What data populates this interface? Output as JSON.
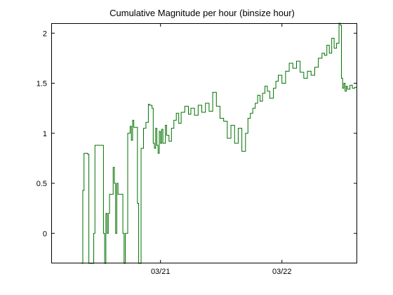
{
  "chart_data": {
    "type": "line",
    "title": "Cumulative Magnitude per hour (binsize  hour)",
    "xlabel": "",
    "ylabel": "",
    "line_style": "step",
    "series_color": "#007000",
    "axis_color": "#000000",
    "background": "#ffffff",
    "grid": false,
    "legend": "none",
    "x_unit": "days since 03/20 00:00",
    "xlim": [
      -0.15,
      2.37
    ],
    "ylim": [
      -0.3,
      2.1
    ],
    "xticks": [
      {
        "value": 0.75,
        "label": "03/21"
      },
      {
        "value": 1.75,
        "label": "03/22"
      }
    ],
    "yticks": [
      {
        "value": 0,
        "label": "0"
      },
      {
        "value": 0.5,
        "label": "0.5"
      },
      {
        "value": 1,
        "label": "1"
      },
      {
        "value": 1.5,
        "label": "1.5"
      },
      {
        "value": 2,
        "label": "2"
      }
    ],
    "series": [
      {
        "x": [
          0.1,
          0.11,
          0.12,
          0.15,
          0.16,
          0.2,
          0.21,
          0.27,
          0.28,
          0.29,
          0.3,
          0.31,
          0.32,
          0.33,
          0.36,
          0.37,
          0.38,
          0.39,
          0.4,
          0.44,
          0.45,
          0.46,
          0.48,
          0.5,
          0.51,
          0.52,
          0.53,
          0.56,
          0.57,
          0.59,
          0.61,
          0.63,
          0.65,
          0.66,
          0.68,
          0.69,
          0.7,
          0.71,
          0.72,
          0.73,
          0.74,
          0.75,
          0.76,
          0.77,
          0.79,
          0.8,
          0.82,
          0.84,
          0.86,
          0.88,
          0.9,
          0.92,
          0.95,
          0.98,
          1.0,
          1.03,
          1.06,
          1.09,
          1.12,
          1.15,
          1.18,
          1.21,
          1.24,
          1.27,
          1.3,
          1.33,
          1.36,
          1.39,
          1.42,
          1.45,
          1.47,
          1.49,
          1.51,
          1.53,
          1.55,
          1.57,
          1.59,
          1.61,
          1.63,
          1.65,
          1.68,
          1.7,
          1.72,
          1.75,
          1.78,
          1.81,
          1.84,
          1.87,
          1.9,
          1.93,
          1.96,
          1.99,
          2.02,
          2.05,
          2.08,
          2.1,
          2.12,
          2.14,
          2.16,
          2.18,
          2.2,
          2.22,
          2.23,
          2.24,
          2.25,
          2.26,
          2.27,
          2.28,
          2.29,
          2.31,
          2.33,
          2.35
        ],
        "y": [
          -0.3,
          0.43,
          0.8,
          0.79,
          -0.3,
          0.0,
          0.88,
          0.88,
          0.0,
          -0.3,
          0.2,
          0.0,
          0.2,
          0.39,
          0.66,
          0.5,
          0.0,
          0.5,
          0.39,
          0.0,
          -0.3,
          0.0,
          1.0,
          1.07,
          0.93,
          1.13,
          1.06,
          0.3,
          -0.3,
          0.85,
          1.05,
          1.11,
          1.29,
          1.28,
          1.25,
          0.9,
          0.85,
          1.05,
          0.88,
          0.8,
          1.02,
          0.9,
          1.04,
          0.9,
          1.08,
          0.98,
          0.92,
          1.05,
          1.13,
          1.2,
          1.1,
          1.21,
          1.27,
          1.19,
          1.25,
          1.18,
          1.28,
          1.21,
          1.3,
          1.22,
          1.41,
          1.27,
          1.15,
          1.12,
          0.95,
          1.08,
          0.9,
          1.05,
          0.82,
          1.0,
          1.15,
          1.2,
          1.25,
          1.3,
          1.38,
          1.32,
          1.4,
          1.47,
          1.42,
          1.35,
          1.45,
          1.52,
          1.58,
          1.5,
          1.62,
          1.7,
          1.65,
          1.72,
          1.61,
          1.55,
          1.62,
          1.58,
          1.66,
          1.75,
          1.8,
          1.78,
          1.88,
          1.8,
          1.95,
          1.85,
          1.9,
          2.1,
          2.08,
          1.55,
          1.45,
          1.5,
          1.42,
          1.47,
          1.44,
          1.48,
          1.45,
          1.46
        ]
      }
    ]
  }
}
